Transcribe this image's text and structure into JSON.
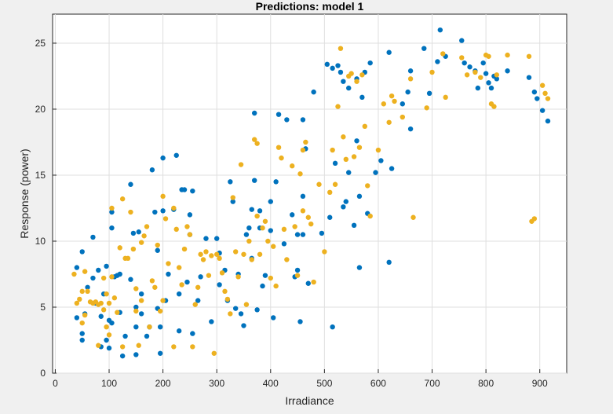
{
  "chart_data": {
    "type": "scatter",
    "title": "Predictions: model 1",
    "xlabel": "Irradiance",
    "ylabel": "Response (power)",
    "xlim": [
      -5,
      950
    ],
    "ylim": [
      0,
      27.2
    ],
    "xticks": [
      0,
      100,
      200,
      300,
      400,
      500,
      600,
      700,
      800,
      900
    ],
    "yticks": [
      0,
      5,
      10,
      15,
      20,
      25
    ],
    "grid": true,
    "colors": {
      "blue": "#0072bd",
      "yellow": "#edb120"
    },
    "series": [
      {
        "color": "#0072bd",
        "points": [
          [
            40,
            8.0
          ],
          [
            40,
            4.2
          ],
          [
            50,
            9.2
          ],
          [
            50,
            3.0
          ],
          [
            50,
            2.5
          ],
          [
            55,
            4.5
          ],
          [
            60,
            6.5
          ],
          [
            70,
            10.3
          ],
          [
            70,
            7.2
          ],
          [
            75,
            5.3
          ],
          [
            80,
            7.8
          ],
          [
            85,
            2.0
          ],
          [
            85,
            4.3
          ],
          [
            90,
            6.0
          ],
          [
            95,
            8.1
          ],
          [
            95,
            2.5
          ],
          [
            100,
            4.0
          ],
          [
            100,
            1.9
          ],
          [
            105,
            3.8
          ],
          [
            105,
            12.2
          ],
          [
            105,
            11.0
          ],
          [
            110,
            7.3
          ],
          [
            115,
            7.4
          ],
          [
            120,
            7.5
          ],
          [
            120,
            4.6
          ],
          [
            125,
            1.3
          ],
          [
            130,
            2.8
          ],
          [
            140,
            7.1
          ],
          [
            140,
            14.3
          ],
          [
            145,
            10.6
          ],
          [
            150,
            5.0
          ],
          [
            150,
            3.5
          ],
          [
            150,
            1.4
          ],
          [
            155,
            10.7
          ],
          [
            160,
            6.0
          ],
          [
            160,
            4.5
          ],
          [
            170,
            2.8
          ],
          [
            175,
            3.5
          ],
          [
            180,
            15.4
          ],
          [
            185,
            12.2
          ],
          [
            190,
            9.3
          ],
          [
            190,
            4.9
          ],
          [
            195,
            3.5
          ],
          [
            195,
            1.5
          ],
          [
            200,
            12.3
          ],
          [
            200,
            16.3
          ],
          [
            205,
            5.5
          ],
          [
            210,
            7.5
          ],
          [
            220,
            12.4
          ],
          [
            225,
            16.5
          ],
          [
            230,
            3.2
          ],
          [
            230,
            6.0
          ],
          [
            235,
            13.9
          ],
          [
            240,
            13.9
          ],
          [
            245,
            6.9
          ],
          [
            250,
            10.5
          ],
          [
            250,
            12.0
          ],
          [
            255,
            13.8
          ],
          [
            255,
            3.0
          ],
          [
            265,
            5.5
          ],
          [
            270,
            7.3
          ],
          [
            280,
            10.2
          ],
          [
            290,
            3.9
          ],
          [
            300,
            10.2
          ],
          [
            305,
            9.1
          ],
          [
            305,
            6.7
          ],
          [
            315,
            7.8
          ],
          [
            320,
            5.5
          ],
          [
            325,
            14.5
          ],
          [
            330,
            13.0
          ],
          [
            335,
            4.9
          ],
          [
            340,
            7.5
          ],
          [
            345,
            4.5
          ],
          [
            350,
            3.6
          ],
          [
            355,
            10.5
          ],
          [
            360,
            11.0
          ],
          [
            365,
            8.7
          ],
          [
            365,
            12.4
          ],
          [
            370,
            19.7
          ],
          [
            370,
            14.6
          ],
          [
            375,
            4.8
          ],
          [
            380,
            11.0
          ],
          [
            380,
            12.3
          ],
          [
            385,
            6.6
          ],
          [
            390,
            7.4
          ],
          [
            400,
            10.8
          ],
          [
            400,
            13.0
          ],
          [
            405,
            4.2
          ],
          [
            410,
            14.5
          ],
          [
            415,
            19.6
          ],
          [
            425,
            9.8
          ],
          [
            430,
            19.2
          ],
          [
            440,
            12.0
          ],
          [
            445,
            7.3
          ],
          [
            450,
            10.5
          ],
          [
            450,
            7.8
          ],
          [
            455,
            3.9
          ],
          [
            460,
            13.4
          ],
          [
            460,
            10.5
          ],
          [
            460,
            19.2
          ],
          [
            465,
            17.0
          ],
          [
            470,
            6.8
          ],
          [
            480,
            21.3
          ],
          [
            495,
            10.6
          ],
          [
            505,
            23.4
          ],
          [
            510,
            11.8
          ],
          [
            515,
            23.1
          ],
          [
            515,
            3.5
          ],
          [
            520,
            15.9
          ],
          [
            525,
            23.3
          ],
          [
            530,
            22.8
          ],
          [
            535,
            22.1
          ],
          [
            535,
            12.6
          ],
          [
            540,
            13.0
          ],
          [
            545,
            21.6
          ],
          [
            545,
            15.2
          ],
          [
            555,
            11.2
          ],
          [
            560,
            22.3
          ],
          [
            560,
            17.6
          ],
          [
            565,
            8.0
          ],
          [
            565,
            13.4
          ],
          [
            570,
            20.9
          ],
          [
            575,
            22.8
          ],
          [
            580,
            12.1
          ],
          [
            585,
            23.5
          ],
          [
            595,
            15.2
          ],
          [
            605,
            16.1
          ],
          [
            620,
            24.3
          ],
          [
            620,
            8.4
          ],
          [
            625,
            15.5
          ],
          [
            645,
            20.4
          ],
          [
            655,
            21.3
          ],
          [
            660,
            22.9
          ],
          [
            660,
            18.5
          ],
          [
            685,
            24.6
          ],
          [
            695,
            21.2
          ],
          [
            710,
            23.6
          ],
          [
            715,
            26.0
          ],
          [
            725,
            24.0
          ],
          [
            755,
            25.2
          ],
          [
            760,
            23.5
          ],
          [
            770,
            23.2
          ],
          [
            780,
            22.9
          ],
          [
            785,
            21.6
          ],
          [
            795,
            23.5
          ],
          [
            800,
            22.7
          ],
          [
            805,
            22.0
          ],
          [
            810,
            21.6
          ],
          [
            815,
            22.5
          ],
          [
            820,
            22.3
          ],
          [
            840,
            22.9
          ],
          [
            880,
            22.4
          ],
          [
            890,
            21.3
          ],
          [
            895,
            20.8
          ],
          [
            905,
            19.9
          ],
          [
            915,
            19.1
          ]
        ]
      },
      {
        "color": "#edb120",
        "points": [
          [
            35,
            7.5
          ],
          [
            40,
            5.3
          ],
          [
            45,
            5.6
          ],
          [
            50,
            6.2
          ],
          [
            50,
            3.8
          ],
          [
            55,
            7.7
          ],
          [
            55,
            4.4
          ],
          [
            60,
            6.2
          ],
          [
            65,
            5.4
          ],
          [
            70,
            5.3
          ],
          [
            75,
            5.4
          ],
          [
            80,
            2.1
          ],
          [
            80,
            5.2
          ],
          [
            85,
            5.3
          ],
          [
            90,
            7.2
          ],
          [
            90,
            4.8
          ],
          [
            95,
            6.0
          ],
          [
            95,
            3.5
          ],
          [
            100,
            5.3
          ],
          [
            100,
            2.9
          ],
          [
            105,
            12.5
          ],
          [
            105,
            7.3
          ],
          [
            110,
            5.7
          ],
          [
            115,
            4.6
          ],
          [
            120,
            9.5
          ],
          [
            125,
            13.2
          ],
          [
            125,
            2.0
          ],
          [
            130,
            8.7
          ],
          [
            135,
            8.7
          ],
          [
            140,
            12.2
          ],
          [
            145,
            9.4
          ],
          [
            150,
            6.4
          ],
          [
            150,
            4.7
          ],
          [
            155,
            2.1
          ],
          [
            160,
            9.9
          ],
          [
            160,
            5.5
          ],
          [
            165,
            10.4
          ],
          [
            170,
            11.1
          ],
          [
            175,
            3.5
          ],
          [
            180,
            7.0
          ],
          [
            185,
            6.5
          ],
          [
            190,
            9.7
          ],
          [
            195,
            4.7
          ],
          [
            200,
            13.4
          ],
          [
            200,
            5.5
          ],
          [
            205,
            11.7
          ],
          [
            210,
            8.3
          ],
          [
            220,
            12.5
          ],
          [
            220,
            2.0
          ],
          [
            225,
            10.9
          ],
          [
            230,
            8.0
          ],
          [
            235,
            6.7
          ],
          [
            240,
            9.4
          ],
          [
            245,
            11.1
          ],
          [
            250,
            10.5
          ],
          [
            255,
            2.0
          ],
          [
            260,
            5.2
          ],
          [
            265,
            6.5
          ],
          [
            270,
            9.0
          ],
          [
            275,
            8.6
          ],
          [
            280,
            9.2
          ],
          [
            285,
            7.4
          ],
          [
            290,
            8.9
          ],
          [
            295,
            1.5
          ],
          [
            300,
            9.0
          ],
          [
            305,
            8.7
          ],
          [
            310,
            7.6
          ],
          [
            315,
            6.2
          ],
          [
            320,
            5.6
          ],
          [
            325,
            4.5
          ],
          [
            330,
            13.3
          ],
          [
            335,
            9.2
          ],
          [
            340,
            7.3
          ],
          [
            345,
            15.8
          ],
          [
            350,
            9.0
          ],
          [
            355,
            5.2
          ],
          [
            360,
            10.0
          ],
          [
            365,
            8.6
          ],
          [
            370,
            17.7
          ],
          [
            375,
            17.4
          ],
          [
            375,
            11.9
          ],
          [
            380,
            9.0
          ],
          [
            385,
            11.0
          ],
          [
            390,
            11.5
          ],
          [
            395,
            10.0
          ],
          [
            400,
            7.2
          ],
          [
            405,
            9.6
          ],
          [
            410,
            6.6
          ],
          [
            415,
            17.1
          ],
          [
            420,
            16.3
          ],
          [
            425,
            10.9
          ],
          [
            430,
            8.6
          ],
          [
            440,
            15.7
          ],
          [
            445,
            11.1
          ],
          [
            450,
            7.4
          ],
          [
            455,
            15.1
          ],
          [
            460,
            12.3
          ],
          [
            460,
            16.9
          ],
          [
            465,
            17.5
          ],
          [
            470,
            11.8
          ],
          [
            475,
            11.3
          ],
          [
            480,
            6.9
          ],
          [
            490,
            14.3
          ],
          [
            500,
            9.2
          ],
          [
            510,
            13.7
          ],
          [
            515,
            16.9
          ],
          [
            520,
            14.3
          ],
          [
            525,
            20.2
          ],
          [
            530,
            24.6
          ],
          [
            535,
            17.9
          ],
          [
            540,
            16.2
          ],
          [
            545,
            22.5
          ],
          [
            550,
            22.7
          ],
          [
            555,
            16.4
          ],
          [
            560,
            22.1
          ],
          [
            565,
            17.1
          ],
          [
            570,
            22.6
          ],
          [
            575,
            18.7
          ],
          [
            580,
            14.2
          ],
          [
            585,
            11.9
          ],
          [
            600,
            16.9
          ],
          [
            610,
            20.4
          ],
          [
            620,
            19.0
          ],
          [
            625,
            21.0
          ],
          [
            630,
            20.6
          ],
          [
            645,
            19.4
          ],
          [
            660,
            22.3
          ],
          [
            665,
            11.8
          ],
          [
            690,
            20.1
          ],
          [
            700,
            22.8
          ],
          [
            720,
            24.2
          ],
          [
            725,
            20.9
          ],
          [
            755,
            23.9
          ],
          [
            765,
            22.6
          ],
          [
            780,
            22.8
          ],
          [
            790,
            22.4
          ],
          [
            800,
            24.1
          ],
          [
            805,
            24.0
          ],
          [
            810,
            20.4
          ],
          [
            815,
            20.2
          ],
          [
            820,
            22.6
          ],
          [
            840,
            24.1
          ],
          [
            880,
            24.0
          ],
          [
            885,
            11.5
          ],
          [
            890,
            11.7
          ],
          [
            905,
            21.8
          ],
          [
            910,
            21.2
          ],
          [
            915,
            20.8
          ]
        ]
      }
    ]
  }
}
